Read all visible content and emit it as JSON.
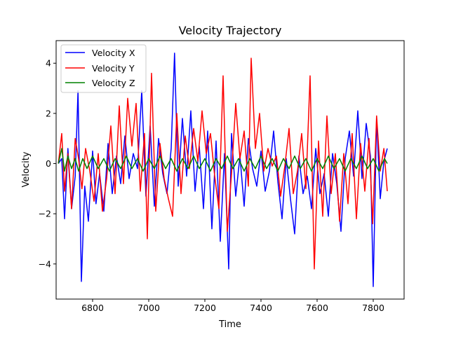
{
  "chart_data": {
    "type": "line",
    "title": "Velocity Trajectory",
    "xlabel": "Time",
    "ylabel": "Velocity",
    "xlim": [
      6670,
      7910
    ],
    "ylim": [
      -5.4,
      4.9
    ],
    "x_ticks": [
      6800,
      7000,
      7200,
      7400,
      7600,
      7800
    ],
    "y_ticks": [
      -4,
      -2,
      0,
      2,
      4
    ],
    "grid": false,
    "legend_position": "upper-left",
    "series": [
      {
        "name": "Velocity X",
        "color": "#0000ff",
        "x": [
          6678,
          6690,
          6700,
          6712,
          6725,
          6738,
          6748,
          6760,
          6772,
          6785,
          6800,
          6812,
          6825,
          6840,
          6855,
          6870,
          6885,
          6900,
          6915,
          6930,
          6945,
          6960,
          6975,
          6990,
          7005,
          7020,
          7035,
          7050,
          7065,
          7080,
          7092,
          7105,
          7120,
          7135,
          7150,
          7165,
          7180,
          7195,
          7210,
          7225,
          7240,
          7255,
          7270,
          7285,
          7295,
          7310,
          7325,
          7340,
          7355,
          7370,
          7385,
          7400,
          7415,
          7430,
          7445,
          7460,
          7475,
          7490,
          7505,
          7520,
          7535,
          7550,
          7565,
          7580,
          7595,
          7610,
          7625,
          7640,
          7655,
          7670,
          7685,
          7700,
          7715,
          7730,
          7745,
          7760,
          7775,
          7790,
          7800,
          7812,
          7825,
          7838,
          7850
        ],
        "values": [
          0.0,
          0.2,
          -2.2,
          0.6,
          -1.8,
          -0.5,
          2.9,
          -4.7,
          -0.9,
          -2.3,
          0.5,
          -1.6,
          -0.4,
          -1.9,
          0.8,
          -1.2,
          0.3,
          -0.8,
          1.1,
          -0.6,
          0.4,
          -0.2,
          2.9,
          -1.3,
          1.5,
          -1.7,
          1.0,
          -0.4,
          -1.2,
          0.6,
          4.4,
          -0.9,
          1.8,
          -0.5,
          2.1,
          -1.1,
          0.7,
          -1.8,
          1.3,
          -2.6,
          0.9,
          -3.1,
          0.4,
          -4.2,
          1.2,
          -1.3,
          0.3,
          -1.7,
          1.0,
          -0.2,
          -0.9,
          0.5,
          -1.1,
          -0.3,
          1.3,
          -0.7,
          -2.2,
          0.2,
          -1.4,
          -2.8,
          0.3,
          -1.2,
          -0.5,
          -1.8,
          0.6,
          -1.2,
          -0.4,
          -2.1,
          0.4,
          -0.8,
          -2.7,
          0.2,
          1.3,
          -0.5,
          2.1,
          -0.6,
          1.6,
          0.3,
          -4.9,
          1.8,
          -1.4,
          0.1,
          0.6
        ]
      },
      {
        "name": "Velocity Y",
        "color": "#ff0000",
        "x": [
          6678,
          6690,
          6700,
          6712,
          6725,
          6738,
          6750,
          6762,
          6775,
          6790,
          6805,
          6820,
          6835,
          6850,
          6865,
          6880,
          6895,
          6910,
          6925,
          6940,
          6955,
          6970,
          6985,
          6995,
          7010,
          7025,
          7040,
          7055,
          7070,
          7085,
          7100,
          7115,
          7130,
          7145,
          7160,
          7175,
          7190,
          7205,
          7220,
          7235,
          7250,
          7265,
          7280,
          7295,
          7310,
          7325,
          7340,
          7355,
          7365,
          7380,
          7395,
          7410,
          7425,
          7440,
          7455,
          7470,
          7485,
          7500,
          7515,
          7530,
          7545,
          7560,
          7575,
          7590,
          7605,
          7620,
          7635,
          7650,
          7665,
          7680,
          7695,
          7710,
          7725,
          7740,
          7755,
          7770,
          7785,
          7798,
          7812,
          7825,
          7838,
          7850
        ],
        "values": [
          0.0,
          1.2,
          -1.1,
          0.4,
          -1.8,
          1.0,
          0.2,
          -1.0,
          0.6,
          -0.3,
          -1.5,
          0.4,
          -1.9,
          -0.6,
          1.5,
          -1.2,
          2.3,
          -0.8,
          2.6,
          0.7,
          2.4,
          -1.1,
          1.2,
          -3.0,
          3.6,
          -1.9,
          0.8,
          -0.6,
          -1.4,
          -2.1,
          2.0,
          -1.2,
          1.1,
          -0.2,
          1.4,
          0.1,
          2.1,
          0.4,
          1.2,
          -0.5,
          -1.8,
          3.5,
          -2.7,
          -0.4,
          2.4,
          0.2,
          1.3,
          -0.9,
          4.2,
          0.6,
          2.0,
          -0.3,
          0.6,
          -0.1,
          0.3,
          -1.3,
          -0.1,
          1.4,
          -1.2,
          -0.3,
          1.2,
          -1.0,
          3.5,
          -4.2,
          0.9,
          -2.1,
          1.9,
          -1.2,
          0.4,
          -2.3,
          0.4,
          -1.6,
          1.2,
          -2.2,
          0.8,
          -1.1,
          1.0,
          -2.4,
          1.9,
          -0.3,
          0.6,
          -1.1
        ]
      },
      {
        "name": "Velocity Z",
        "color": "#008000",
        "x": [
          6678,
          6690,
          6700,
          6712,
          6725,
          6738,
          6750,
          6765,
          6780,
          6800,
          6820,
          6840,
          6860,
          6880,
          6900,
          6920,
          6940,
          6960,
          6980,
          7000,
          7020,
          7040,
          7060,
          7080,
          7100,
          7120,
          7140,
          7160,
          7180,
          7200,
          7220,
          7240,
          7260,
          7280,
          7300,
          7320,
          7340,
          7360,
          7380,
          7400,
          7420,
          7440,
          7460,
          7480,
          7500,
          7520,
          7540,
          7560,
          7580,
          7600,
          7620,
          7640,
          7660,
          7680,
          7700,
          7720,
          7740,
          7760,
          7780,
          7800,
          7820,
          7840,
          7850
        ],
        "values": [
          0.0,
          0.6,
          -0.3,
          0.3,
          -0.2,
          0.2,
          -0.3,
          0.2,
          -0.2,
          0.3,
          -0.2,
          0.2,
          -0.3,
          0.2,
          -0.2,
          0.3,
          -0.2,
          0.2,
          -0.3,
          0.2,
          -0.2,
          0.3,
          -0.2,
          0.2,
          -0.3,
          0.2,
          -0.2,
          0.3,
          -0.2,
          0.2,
          -0.3,
          0.2,
          -0.2,
          0.3,
          -0.2,
          0.2,
          -0.3,
          0.2,
          -0.2,
          0.3,
          -0.2,
          0.2,
          -0.3,
          0.2,
          -0.2,
          0.3,
          -0.2,
          0.2,
          -0.3,
          0.2,
          -0.2,
          0.3,
          -0.2,
          0.2,
          -0.3,
          0.2,
          -0.2,
          0.3,
          -0.2,
          0.2,
          -0.3,
          0.2,
          0.0
        ]
      }
    ]
  }
}
